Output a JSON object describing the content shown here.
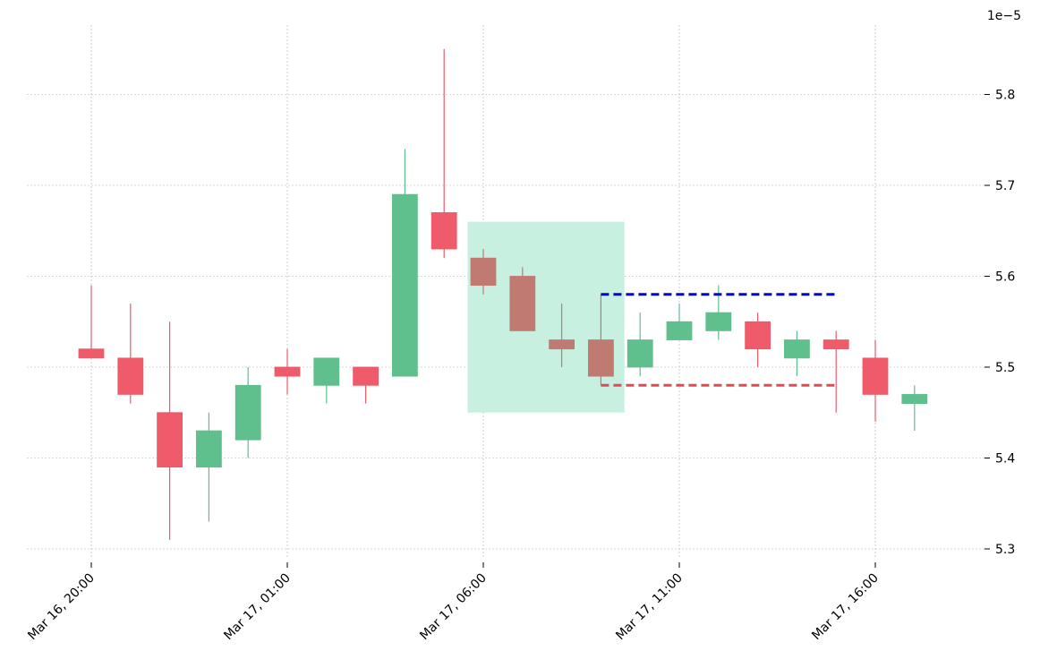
{
  "chart_data": {
    "type": "candlestick",
    "title": "",
    "xlabel": "",
    "ylabel": "",
    "y_offset_label": "1e−5",
    "y_scale": 1e-05,
    "ylim": [
      5.285,
      5.885
    ],
    "y_ticks": [
      5.3,
      5.4,
      5.5,
      5.6,
      5.7,
      5.8
    ],
    "y_tick_labels": [
      "5.3",
      "5.4",
      "5.5",
      "5.6",
      "5.7",
      "5.8"
    ],
    "x_ticks": [
      {
        "index": 0,
        "label": "Mar 16, 20:00"
      },
      {
        "index": 5,
        "label": "Mar 17, 01:00"
      },
      {
        "index": 10,
        "label": "Mar 17, 06:00"
      },
      {
        "index": 15,
        "label": "Mar 17, 11:00"
      },
      {
        "index": 20,
        "label": "Mar 17, 16:00"
      }
    ],
    "grid": true,
    "colors": {
      "up": "#5fbf8d",
      "down": "#ef5b6a",
      "highlight_fill": "#c7f0e0",
      "highlighted_candle": "#c07a72",
      "resistance_line": "#0000dd",
      "support_line": "#e04a55",
      "grid": "#b0b0b0"
    },
    "candles": [
      {
        "index": 0,
        "open": 5.52,
        "high": 5.59,
        "low": 5.51,
        "close": 5.51
      },
      {
        "index": 1,
        "open": 5.51,
        "high": 5.57,
        "low": 5.46,
        "close": 5.47
      },
      {
        "index": 2,
        "open": 5.45,
        "high": 5.55,
        "low": 5.31,
        "close": 5.39
      },
      {
        "index": 3,
        "open": 5.39,
        "high": 5.45,
        "low": 5.33,
        "close": 5.43
      },
      {
        "index": 4,
        "open": 5.42,
        "high": 5.5,
        "low": 5.4,
        "close": 5.48
      },
      {
        "index": 5,
        "open": 5.5,
        "high": 5.52,
        "low": 5.47,
        "close": 5.49
      },
      {
        "index": 6,
        "open": 5.48,
        "high": 5.51,
        "low": 5.46,
        "close": 5.51
      },
      {
        "index": 7,
        "open": 5.5,
        "high": 5.5,
        "low": 5.46,
        "close": 5.48
      },
      {
        "index": 8,
        "open": 5.49,
        "high": 5.74,
        "low": 5.49,
        "close": 5.69
      },
      {
        "index": 9,
        "open": 5.67,
        "high": 5.85,
        "low": 5.62,
        "close": 5.63
      },
      {
        "index": 10,
        "open": 5.62,
        "high": 5.63,
        "low": 5.58,
        "close": 5.59,
        "highlighted": true
      },
      {
        "index": 11,
        "open": 5.6,
        "high": 5.61,
        "low": 5.54,
        "close": 5.54,
        "highlighted": true
      },
      {
        "index": 12,
        "open": 5.53,
        "high": 5.57,
        "low": 5.5,
        "close": 5.52,
        "highlighted": true
      },
      {
        "index": 13,
        "open": 5.53,
        "high": 5.58,
        "low": 5.48,
        "close": 5.49,
        "highlighted": true
      },
      {
        "index": 14,
        "open": 5.5,
        "high": 5.56,
        "low": 5.49,
        "close": 5.53
      },
      {
        "index": 15,
        "open": 5.53,
        "high": 5.57,
        "low": 5.53,
        "close": 5.55
      },
      {
        "index": 16,
        "open": 5.54,
        "high": 5.59,
        "low": 5.53,
        "close": 5.56
      },
      {
        "index": 17,
        "open": 5.55,
        "high": 5.56,
        "low": 5.5,
        "close": 5.52
      },
      {
        "index": 18,
        "open": 5.51,
        "high": 5.54,
        "low": 5.49,
        "close": 5.53
      },
      {
        "index": 19,
        "open": 5.53,
        "high": 5.54,
        "low": 5.45,
        "close": 5.52
      },
      {
        "index": 20,
        "open": 5.51,
        "high": 5.53,
        "low": 5.44,
        "close": 5.47
      },
      {
        "index": 21,
        "open": 5.46,
        "high": 5.48,
        "low": 5.43,
        "close": 5.47
      }
    ],
    "highlight_region": {
      "from_index": 9.6,
      "to_index": 13.6,
      "y_low": 5.45,
      "y_high": 5.66
    },
    "levels": [
      {
        "type": "resistance",
        "y": 5.58,
        "from_index": 13.0,
        "to_index": 19.0
      },
      {
        "type": "support",
        "y": 5.48,
        "from_index": 13.0,
        "to_index": 19.0
      }
    ]
  }
}
